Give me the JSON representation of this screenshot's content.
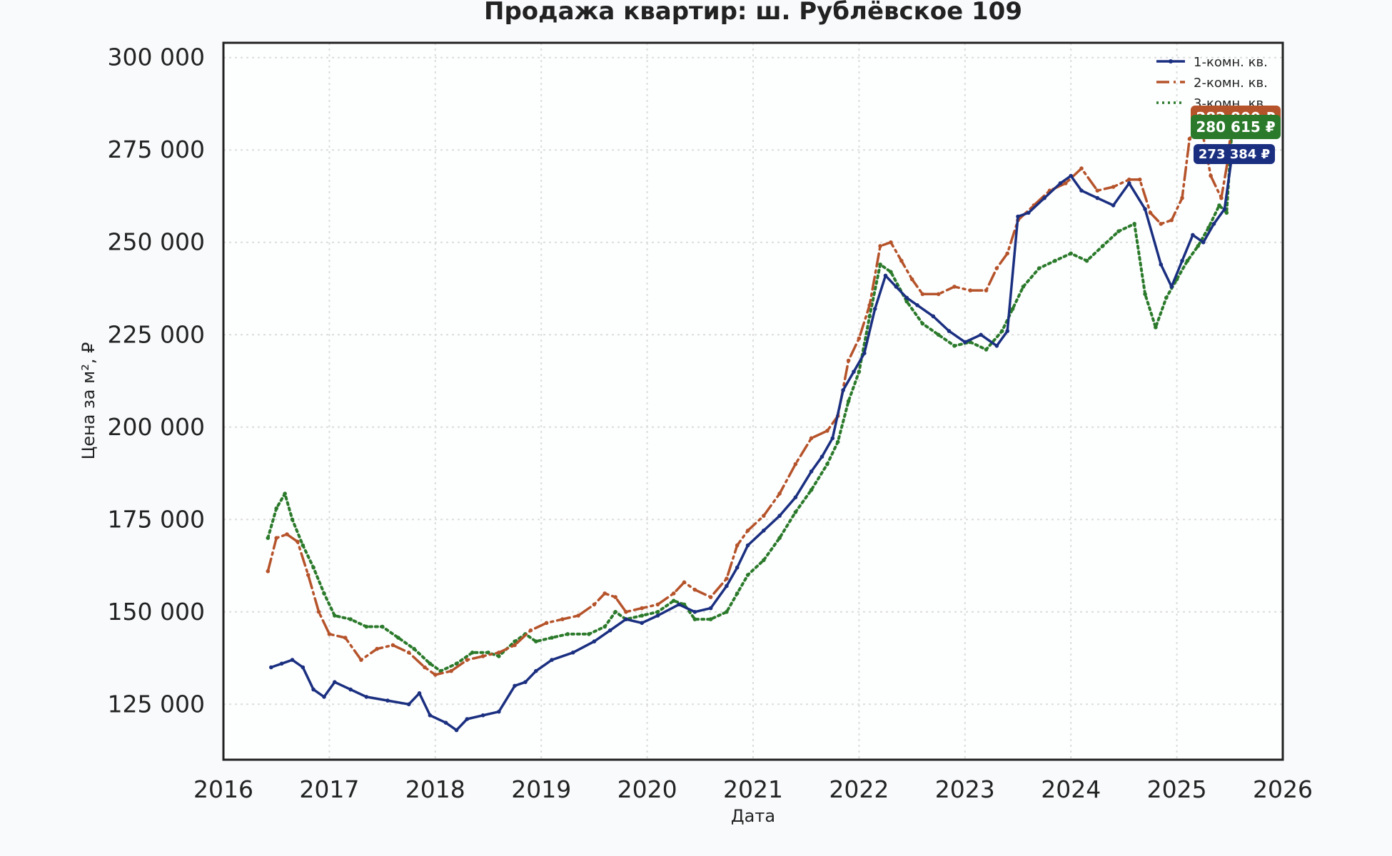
{
  "chart_data": {
    "type": "line",
    "title": "Продажа квартир: ш. Рублёвское 109",
    "xlabel": "Дата",
    "ylabel": "Цена за м², ₽",
    "xlim": [
      2016,
      2026
    ],
    "ylim": [
      110000,
      304000
    ],
    "x_ticks": [
      2016,
      2017,
      2018,
      2019,
      2020,
      2021,
      2022,
      2023,
      2024,
      2025,
      2026
    ],
    "y_ticks": [
      125000,
      150000,
      175000,
      200000,
      225000,
      250000,
      275000,
      300000
    ],
    "y_tick_labels": [
      "125 000",
      "150 000",
      "175 000",
      "200 000",
      "225 000",
      "250 000",
      "275 000",
      "300 000"
    ],
    "grid": true,
    "legend_position": "top-right",
    "series": [
      {
        "name": "1-комн. кв.",
        "color": "#1a2f80",
        "style": "solid-dots",
        "last_label": "273 384 ₽",
        "points": [
          [
            2016.45,
            135000
          ],
          [
            2016.55,
            136000
          ],
          [
            2016.65,
            137000
          ],
          [
            2016.75,
            135000
          ],
          [
            2016.85,
            129000
          ],
          [
            2016.95,
            127000
          ],
          [
            2017.05,
            131000
          ],
          [
            2017.2,
            129000
          ],
          [
            2017.35,
            127000
          ],
          [
            2017.55,
            126000
          ],
          [
            2017.75,
            125000
          ],
          [
            2017.85,
            128000
          ],
          [
            2017.95,
            122000
          ],
          [
            2018.1,
            120000
          ],
          [
            2018.2,
            118000
          ],
          [
            2018.3,
            121000
          ],
          [
            2018.45,
            122000
          ],
          [
            2018.6,
            123000
          ],
          [
            2018.75,
            130000
          ],
          [
            2018.85,
            131000
          ],
          [
            2018.95,
            134000
          ],
          [
            2019.1,
            137000
          ],
          [
            2019.3,
            139000
          ],
          [
            2019.5,
            142000
          ],
          [
            2019.65,
            145000
          ],
          [
            2019.8,
            148000
          ],
          [
            2019.95,
            147000
          ],
          [
            2020.1,
            149000
          ],
          [
            2020.3,
            152000
          ],
          [
            2020.45,
            150000
          ],
          [
            2020.6,
            151000
          ],
          [
            2020.75,
            157000
          ],
          [
            2020.85,
            162000
          ],
          [
            2020.95,
            168000
          ],
          [
            2021.1,
            172000
          ],
          [
            2021.25,
            176000
          ],
          [
            2021.4,
            181000
          ],
          [
            2021.55,
            188000
          ],
          [
            2021.65,
            192000
          ],
          [
            2021.75,
            197000
          ],
          [
            2021.85,
            210000
          ],
          [
            2021.95,
            215000
          ],
          [
            2022.05,
            220000
          ],
          [
            2022.15,
            232000
          ],
          [
            2022.25,
            241000
          ],
          [
            2022.35,
            238000
          ],
          [
            2022.45,
            235000
          ],
          [
            2022.55,
            233000
          ],
          [
            2022.7,
            230000
          ],
          [
            2022.85,
            226000
          ],
          [
            2023.0,
            223000
          ],
          [
            2023.15,
            225000
          ],
          [
            2023.3,
            222000
          ],
          [
            2023.4,
            226000
          ],
          [
            2023.5,
            257000
          ],
          [
            2023.6,
            258000
          ],
          [
            2023.75,
            262000
          ],
          [
            2023.9,
            266000
          ],
          [
            2024.0,
            268000
          ],
          [
            2024.1,
            264000
          ],
          [
            2024.25,
            262000
          ],
          [
            2024.4,
            260000
          ],
          [
            2024.55,
            266000
          ],
          [
            2024.7,
            259000
          ],
          [
            2024.85,
            244000
          ],
          [
            2024.95,
            238000
          ],
          [
            2025.05,
            245000
          ],
          [
            2025.15,
            252000
          ],
          [
            2025.25,
            250000
          ],
          [
            2025.35,
            255000
          ],
          [
            2025.45,
            259000
          ],
          [
            2025.52,
            273384
          ]
        ]
      },
      {
        "name": "2-комн. кв.",
        "color": "#b5532a",
        "style": "dashdot",
        "last_label": "282 800 ₽",
        "points": [
          [
            2016.42,
            161000
          ],
          [
            2016.5,
            170000
          ],
          [
            2016.6,
            171000
          ],
          [
            2016.7,
            169000
          ],
          [
            2016.8,
            160000
          ],
          [
            2016.9,
            150000
          ],
          [
            2017.0,
            144000
          ],
          [
            2017.15,
            143000
          ],
          [
            2017.3,
            137000
          ],
          [
            2017.45,
            140000
          ],
          [
            2017.6,
            141000
          ],
          [
            2017.75,
            139000
          ],
          [
            2017.9,
            135000
          ],
          [
            2018.0,
            133000
          ],
          [
            2018.15,
            134000
          ],
          [
            2018.3,
            137000
          ],
          [
            2018.45,
            138000
          ],
          [
            2018.6,
            139000
          ],
          [
            2018.75,
            141000
          ],
          [
            2018.9,
            145000
          ],
          [
            2019.05,
            147000
          ],
          [
            2019.2,
            148000
          ],
          [
            2019.35,
            149000
          ],
          [
            2019.5,
            152000
          ],
          [
            2019.6,
            155000
          ],
          [
            2019.7,
            154000
          ],
          [
            2019.8,
            150000
          ],
          [
            2019.95,
            151000
          ],
          [
            2020.1,
            152000
          ],
          [
            2020.25,
            155000
          ],
          [
            2020.35,
            158000
          ],
          [
            2020.45,
            156000
          ],
          [
            2020.6,
            154000
          ],
          [
            2020.75,
            159000
          ],
          [
            2020.85,
            168000
          ],
          [
            2020.95,
            172000
          ],
          [
            2021.1,
            176000
          ],
          [
            2021.25,
            182000
          ],
          [
            2021.4,
            190000
          ],
          [
            2021.55,
            197000
          ],
          [
            2021.7,
            199000
          ],
          [
            2021.8,
            203000
          ],
          [
            2021.9,
            218000
          ],
          [
            2022.0,
            224000
          ],
          [
            2022.1,
            233000
          ],
          [
            2022.2,
            249000
          ],
          [
            2022.3,
            250000
          ],
          [
            2022.4,
            245000
          ],
          [
            2022.5,
            240000
          ],
          [
            2022.6,
            236000
          ],
          [
            2022.75,
            236000
          ],
          [
            2022.9,
            238000
          ],
          [
            2023.05,
            237000
          ],
          [
            2023.2,
            237000
          ],
          [
            2023.3,
            243000
          ],
          [
            2023.4,
            247000
          ],
          [
            2023.5,
            256000
          ],
          [
            2023.65,
            260000
          ],
          [
            2023.8,
            264000
          ],
          [
            2023.95,
            266000
          ],
          [
            2024.1,
            270000
          ],
          [
            2024.25,
            264000
          ],
          [
            2024.4,
            265000
          ],
          [
            2024.55,
            267000
          ],
          [
            2024.65,
            267000
          ],
          [
            2024.75,
            258000
          ],
          [
            2024.85,
            255000
          ],
          [
            2024.95,
            256000
          ],
          [
            2025.05,
            262000
          ],
          [
            2025.12,
            278000
          ],
          [
            2025.22,
            283000
          ],
          [
            2025.32,
            268000
          ],
          [
            2025.42,
            262000
          ],
          [
            2025.48,
            272000
          ],
          [
            2025.52,
            282800
          ]
        ]
      },
      {
        "name": "3-комн. кв.",
        "color": "#2b7a2b",
        "style": "dotted",
        "last_label": "280 615 ₽",
        "points": [
          [
            2016.42,
            170000
          ],
          [
            2016.5,
            178000
          ],
          [
            2016.58,
            182000
          ],
          [
            2016.65,
            175000
          ],
          [
            2016.75,
            168000
          ],
          [
            2016.85,
            162000
          ],
          [
            2016.95,
            155000
          ],
          [
            2017.05,
            149000
          ],
          [
            2017.2,
            148000
          ],
          [
            2017.35,
            146000
          ],
          [
            2017.5,
            146000
          ],
          [
            2017.65,
            143000
          ],
          [
            2017.8,
            140000
          ],
          [
            2017.95,
            136000
          ],
          [
            2018.05,
            134000
          ],
          [
            2018.2,
            136000
          ],
          [
            2018.35,
            139000
          ],
          [
            2018.5,
            139000
          ],
          [
            2018.6,
            138000
          ],
          [
            2018.75,
            142000
          ],
          [
            2018.85,
            144000
          ],
          [
            2018.95,
            142000
          ],
          [
            2019.1,
            143000
          ],
          [
            2019.25,
            144000
          ],
          [
            2019.45,
            144000
          ],
          [
            2019.6,
            146000
          ],
          [
            2019.7,
            150000
          ],
          [
            2019.8,
            148000
          ],
          [
            2019.95,
            149000
          ],
          [
            2020.1,
            150000
          ],
          [
            2020.25,
            153000
          ],
          [
            2020.35,
            152000
          ],
          [
            2020.45,
            148000
          ],
          [
            2020.6,
            148000
          ],
          [
            2020.75,
            150000
          ],
          [
            2020.85,
            155000
          ],
          [
            2020.95,
            160000
          ],
          [
            2021.1,
            164000
          ],
          [
            2021.25,
            170000
          ],
          [
            2021.4,
            177000
          ],
          [
            2021.55,
            183000
          ],
          [
            2021.7,
            190000
          ],
          [
            2021.8,
            196000
          ],
          [
            2021.9,
            207000
          ],
          [
            2022.0,
            215000
          ],
          [
            2022.1,
            230000
          ],
          [
            2022.2,
            244000
          ],
          [
            2022.3,
            242000
          ],
          [
            2022.45,
            234000
          ],
          [
            2022.6,
            228000
          ],
          [
            2022.75,
            225000
          ],
          [
            2022.9,
            222000
          ],
          [
            2023.05,
            223000
          ],
          [
            2023.2,
            221000
          ],
          [
            2023.35,
            226000
          ],
          [
            2023.45,
            232000
          ],
          [
            2023.55,
            238000
          ],
          [
            2023.7,
            243000
          ],
          [
            2023.85,
            245000
          ],
          [
            2024.0,
            247000
          ],
          [
            2024.15,
            245000
          ],
          [
            2024.3,
            249000
          ],
          [
            2024.45,
            253000
          ],
          [
            2024.6,
            255000
          ],
          [
            2024.7,
            236000
          ],
          [
            2024.8,
            227000
          ],
          [
            2024.9,
            235000
          ],
          [
            2025.0,
            240000
          ],
          [
            2025.1,
            245000
          ],
          [
            2025.2,
            249000
          ],
          [
            2025.3,
            254000
          ],
          [
            2025.4,
            260000
          ],
          [
            2025.47,
            258000
          ],
          [
            2025.52,
            280615
          ]
        ]
      }
    ]
  }
}
